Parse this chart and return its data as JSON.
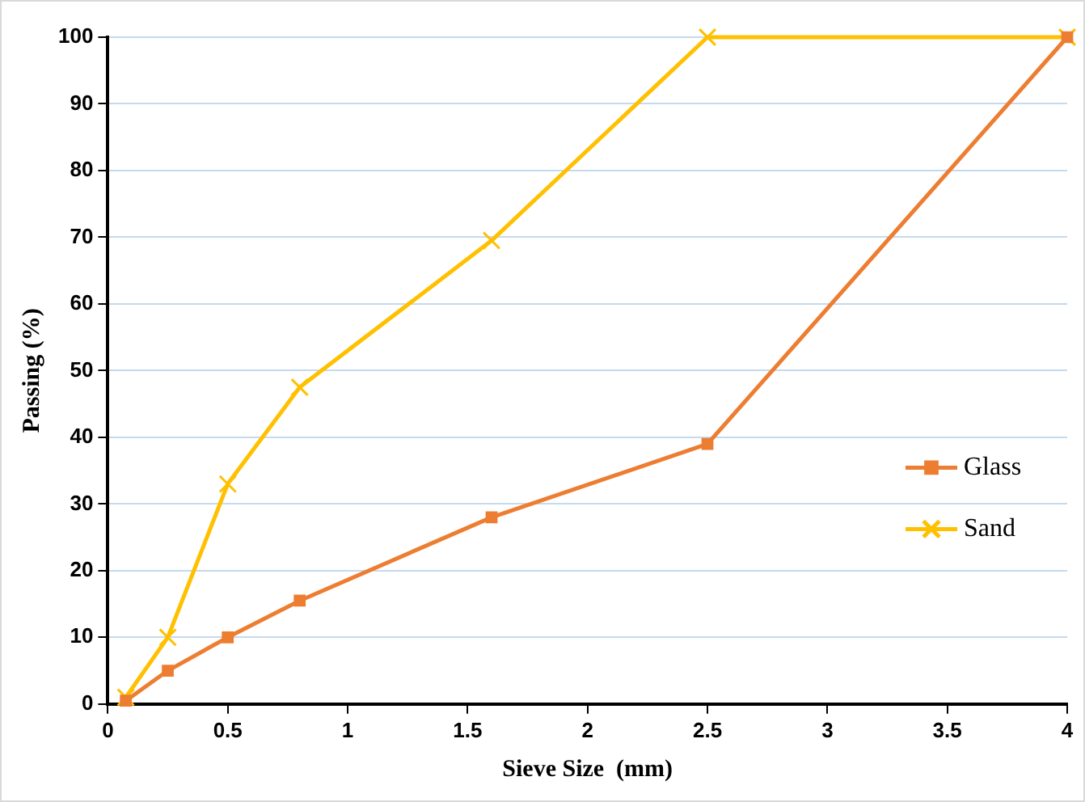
{
  "chart_data": {
    "type": "line",
    "xlabel": "Sieve Size  (mm)",
    "ylabel": "Passing (%)",
    "xlim": [
      0,
      4
    ],
    "xticks": [
      0,
      0.5,
      1,
      1.5,
      2,
      2.5,
      3,
      3.5,
      4
    ],
    "ylim": [
      0,
      100
    ],
    "yticks": [
      0,
      10,
      20,
      30,
      40,
      50,
      60,
      70,
      80,
      90,
      100
    ],
    "grid": "y",
    "legend": "right",
    "series": [
      {
        "name": "Glass",
        "color": "#ed7d31",
        "marker": "square",
        "x": [
          0.075,
          0.25,
          0.5,
          0.8,
          1.6,
          2.5,
          4
        ],
        "values": [
          0.5,
          5,
          10,
          15.5,
          28,
          39,
          100
        ]
      },
      {
        "name": "Sand",
        "color": "#ffc000",
        "marker": "cross",
        "x": [
          0.075,
          0.25,
          0.5,
          0.8,
          1.6,
          2.5,
          4
        ],
        "values": [
          1,
          10,
          33,
          47.5,
          69.5,
          100,
          100
        ]
      }
    ]
  }
}
